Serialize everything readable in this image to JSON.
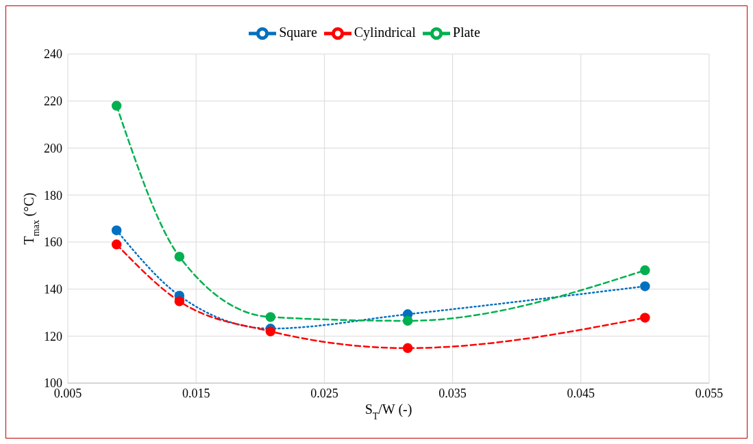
{
  "chart_data": {
    "type": "line",
    "xlabel": "S$_{T}$/W (-)",
    "ylabel": "T$_{max}$ (°C)",
    "xlim": [
      0.005,
      0.055
    ],
    "xticks": [
      0.005,
      0.015,
      0.025,
      0.035,
      0.045,
      0.055
    ],
    "ylim": [
      100,
      240
    ],
    "yticks": [
      100,
      120,
      140,
      160,
      180,
      200,
      220,
      240
    ],
    "grid": true,
    "legend": "top",
    "marker": "circle",
    "x": [
      0.0088,
      0.0137,
      0.0208,
      0.0315,
      0.05
    ],
    "series": [
      {
        "name": "Square",
        "color": "#0070c0",
        "line_style": "dotted",
        "values": [
          165,
          137.2,
          123.2,
          129.3,
          141.2
        ]
      },
      {
        "name": "Cylindrical",
        "color": "#ff0000",
        "line_style": "dashed",
        "values": [
          159,
          134.8,
          122,
          114.9,
          127.8
        ]
      },
      {
        "name": "Plate",
        "color": "#00b050",
        "line_style": "dashed",
        "values": [
          218,
          153.8,
          128.1,
          126.5,
          148
        ]
      }
    ]
  }
}
